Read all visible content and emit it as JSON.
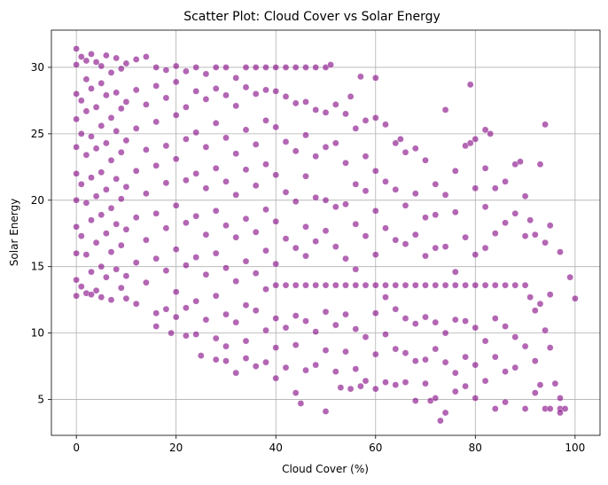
{
  "chart_data": {
    "type": "scatter",
    "title": "Scatter Plot: Cloud Cover vs Solar Energy",
    "xlabel": "Cloud Cover (%)",
    "ylabel": "Solar Energy",
    "xlim": [
      -5,
      105
    ],
    "ylim": [
      2.3,
      32.8
    ],
    "xticks": [
      0,
      20,
      40,
      60,
      80,
      100
    ],
    "yticks": [
      5,
      10,
      15,
      20,
      25,
      30
    ],
    "grid": true,
    "legend": "none",
    "marker_color": "#800080",
    "marker_edge": "#ffffff",
    "marker_alpha": 0.6,
    "points_sample": [
      [
        0,
        31.4
      ],
      [
        0,
        30.2
      ],
      [
        0,
        28.0
      ],
      [
        0,
        26.1
      ],
      [
        0,
        24.0
      ],
      [
        0,
        22.0
      ],
      [
        0,
        20.0
      ],
      [
        0,
        18.0
      ],
      [
        0,
        16.0
      ],
      [
        0,
        14.0
      ],
      [
        0,
        12.8
      ],
      [
        1,
        30.8
      ],
      [
        1,
        27.5
      ],
      [
        1,
        25.0
      ],
      [
        1,
        21.2
      ],
      [
        1,
        17.3
      ],
      [
        1,
        13.5
      ],
      [
        2,
        30.5
      ],
      [
        2,
        29.1
      ],
      [
        2,
        26.7
      ],
      [
        2,
        23.4
      ],
      [
        2,
        19.8
      ],
      [
        2,
        15.9
      ],
      [
        2,
        13.0
      ],
      [
        3,
        31.0
      ],
      [
        3,
        28.4
      ],
      [
        3,
        24.8
      ],
      [
        3,
        21.7
      ],
      [
        3,
        18.5
      ],
      [
        3,
        14.6
      ],
      [
        3,
        12.9
      ],
      [
        4,
        30.4
      ],
      [
        4,
        27.0
      ],
      [
        4,
        23.9
      ],
      [
        4,
        20.3
      ],
      [
        4,
        16.8
      ],
      [
        4,
        13.2
      ],
      [
        5,
        30.1
      ],
      [
        5,
        28.8
      ],
      [
        5,
        25.6
      ],
      [
        5,
        22.1
      ],
      [
        5,
        18.9
      ],
      [
        5,
        15.0
      ],
      [
        5,
        12.7
      ],
      [
        6,
        30.9
      ],
      [
        6,
        27.9
      ],
      [
        6,
        24.3
      ],
      [
        6,
        20.8
      ],
      [
        6,
        17.5
      ],
      [
        6,
        14.2
      ],
      [
        7,
        29.6
      ],
      [
        7,
        26.2
      ],
      [
        7,
        23.0
      ],
      [
        7,
        19.4
      ],
      [
        7,
        16.1
      ],
      [
        7,
        12.5
      ],
      [
        8,
        30.7
      ],
      [
        8,
        28.1
      ],
      [
        8,
        25.2
      ],
      [
        8,
        21.6
      ],
      [
        8,
        18.2
      ],
      [
        8,
        14.8
      ],
      [
        9,
        29.9
      ],
      [
        9,
        26.9
      ],
      [
        9,
        23.6
      ],
      [
        9,
        20.1
      ],
      [
        9,
        16.6
      ],
      [
        9,
        13.4
      ],
      [
        10,
        30.3
      ],
      [
        10,
        27.4
      ],
      [
        10,
        24.5
      ],
      [
        10,
        21.0
      ],
      [
        10,
        17.8
      ],
      [
        10,
        14.3
      ],
      [
        10,
        12.6
      ],
      [
        12,
        30.6
      ],
      [
        12,
        28.3
      ],
      [
        12,
        25.4
      ],
      [
        12,
        22.2
      ],
      [
        12,
        18.7
      ],
      [
        12,
        15.3
      ],
      [
        12,
        12.2
      ],
      [
        14,
        30.8
      ],
      [
        14,
        27.2
      ],
      [
        14,
        23.8
      ],
      [
        14,
        20.5
      ],
      [
        14,
        17.0
      ],
      [
        14,
        13.8
      ],
      [
        16,
        30.0
      ],
      [
        16,
        28.6
      ],
      [
        16,
        25.9
      ],
      [
        16,
        22.6
      ],
      [
        16,
        19.0
      ],
      [
        16,
        15.6
      ],
      [
        16,
        11.5
      ],
      [
        16,
        10.5
      ],
      [
        18,
        29.8
      ],
      [
        18,
        27.7
      ],
      [
        18,
        24.1
      ],
      [
        18,
        21.3
      ],
      [
        18,
        17.9
      ],
      [
        18,
        14.7
      ],
      [
        18,
        11.8
      ],
      [
        19,
        10.0
      ],
      [
        20,
        30.1
      ],
      [
        20,
        28.9
      ],
      [
        20,
        26.4
      ],
      [
        20,
        23.1
      ],
      [
        20,
        19.6
      ],
      [
        20,
        16.3
      ],
      [
        20,
        13.1
      ],
      [
        20,
        11.2
      ],
      [
        22,
        29.7
      ],
      [
        22,
        27.0
      ],
      [
        22,
        24.6
      ],
      [
        22,
        21.5
      ],
      [
        22,
        18.3
      ],
      [
        22,
        15.1
      ],
      [
        22,
        11.9
      ],
      [
        22,
        9.8
      ],
      [
        24,
        30.0
      ],
      [
        24,
        28.2
      ],
      [
        24,
        25.1
      ],
      [
        24,
        22.0
      ],
      [
        24,
        18.8
      ],
      [
        24,
        15.7
      ],
      [
        24,
        12.4
      ],
      [
        24,
        9.9
      ],
      [
        25,
        8.3
      ],
      [
        26,
        29.5
      ],
      [
        26,
        27.6
      ],
      [
        26,
        24.0
      ],
      [
        26,
        20.9
      ],
      [
        26,
        17.4
      ],
      [
        26,
        14.4
      ],
      [
        26,
        11.0
      ],
      [
        28,
        30.0
      ],
      [
        28,
        28.4
      ],
      [
        28,
        25.8
      ],
      [
        28,
        22.4
      ],
      [
        28,
        19.2
      ],
      [
        28,
        16.0
      ],
      [
        28,
        12.8
      ],
      [
        28,
        9.6
      ],
      [
        28,
        8.0
      ],
      [
        30,
        30.0
      ],
      [
        30,
        27.9
      ],
      [
        30,
        24.7
      ],
      [
        30,
        21.4
      ],
      [
        30,
        18.1
      ],
      [
        30,
        14.9
      ],
      [
        30,
        11.4
      ],
      [
        30,
        9.0
      ],
      [
        30,
        7.9
      ],
      [
        32,
        29.2
      ],
      [
        32,
        27.1
      ],
      [
        32,
        23.5
      ],
      [
        32,
        20.4
      ],
      [
        32,
        17.2
      ],
      [
        32,
        13.9
      ],
      [
        32,
        10.8
      ],
      [
        32,
        7.0
      ],
      [
        34,
        30.0
      ],
      [
        34,
        28.5
      ],
      [
        34,
        25.3
      ],
      [
        34,
        22.3
      ],
      [
        34,
        18.6
      ],
      [
        34,
        15.4
      ],
      [
        34,
        12.1
      ],
      [
        34,
        9.4
      ],
      [
        34,
        8.1
      ],
      [
        36,
        30.0
      ],
      [
        36,
        28.0
      ],
      [
        36,
        24.2
      ],
      [
        36,
        21.1
      ],
      [
        36,
        17.6
      ],
      [
        36,
        14.5
      ],
      [
        36,
        11.7
      ],
      [
        36,
        7.5
      ],
      [
        38,
        30.0
      ],
      [
        38,
        28.3
      ],
      [
        38,
        26.0
      ],
      [
        38,
        22.7
      ],
      [
        38,
        19.3
      ],
      [
        38,
        16.2
      ],
      [
        38,
        13.3
      ],
      [
        38,
        10.2
      ],
      [
        38,
        7.8
      ],
      [
        40,
        30.0
      ],
      [
        40,
        28.2
      ],
      [
        40,
        25.5
      ],
      [
        40,
        21.9
      ],
      [
        40,
        18.4
      ],
      [
        40,
        15.2
      ],
      [
        40,
        13.6
      ],
      [
        40,
        11.1
      ],
      [
        40,
        8.9
      ],
      [
        40,
        6.6
      ],
      [
        42,
        30.0
      ],
      [
        42,
        27.8
      ],
      [
        42,
        24.4
      ],
      [
        42,
        20.6
      ],
      [
        42,
        17.1
      ],
      [
        42,
        13.6
      ],
      [
        42,
        10.4
      ],
      [
        42,
        7.4
      ],
      [
        44,
        30.0
      ],
      [
        44,
        27.3
      ],
      [
        44,
        23.7
      ],
      [
        44,
        19.9
      ],
      [
        44,
        16.4
      ],
      [
        44,
        13.6
      ],
      [
        44,
        11.3
      ],
      [
        44,
        9.1
      ],
      [
        44,
        5.5
      ],
      [
        45,
        4.7
      ],
      [
        46,
        30.0
      ],
      [
        46,
        27.4
      ],
      [
        46,
        24.9
      ],
      [
        46,
        21.8
      ],
      [
        46,
        18.0
      ],
      [
        46,
        15.8
      ],
      [
        46,
        13.6
      ],
      [
        46,
        10.9
      ],
      [
        46,
        7.2
      ],
      [
        48,
        30.0
      ],
      [
        48,
        26.8
      ],
      [
        48,
        23.3
      ],
      [
        48,
        20.2
      ],
      [
        48,
        16.9
      ],
      [
        48,
        13.6
      ],
      [
        48,
        10.1
      ],
      [
        48,
        7.6
      ],
      [
        50,
        30.0
      ],
      [
        50,
        26.6
      ],
      [
        50,
        24.0
      ],
      [
        50,
        20.0
      ],
      [
        50,
        17.7
      ],
      [
        50,
        13.6
      ],
      [
        50,
        11.6
      ],
      [
        50,
        8.7
      ],
      [
        50,
        4.1
      ],
      [
        51,
        30.2
      ],
      [
        52,
        27.2
      ],
      [
        52,
        24.3
      ],
      [
        52,
        19.5
      ],
      [
        52,
        16.5
      ],
      [
        52,
        13.6
      ],
      [
        52,
        10.6
      ],
      [
        52,
        7.1
      ],
      [
        53,
        5.9
      ],
      [
        54,
        26.5
      ],
      [
        54,
        22.8
      ],
      [
        54,
        19.7
      ],
      [
        54,
        15.6
      ],
      [
        54,
        13.6
      ],
      [
        54,
        11.4
      ],
      [
        54,
        8.6
      ],
      [
        55,
        27.8
      ],
      [
        55,
        5.8
      ],
      [
        56,
        25.4
      ],
      [
        56,
        21.2
      ],
      [
        56,
        18.2
      ],
      [
        56,
        14.8
      ],
      [
        56,
        13.6
      ],
      [
        56,
        10.3
      ],
      [
        56,
        7.3
      ],
      [
        57,
        29.3
      ],
      [
        57,
        6.0
      ],
      [
        58,
        26.0
      ],
      [
        58,
        23.3
      ],
      [
        58,
        20.7
      ],
      [
        58,
        17.3
      ],
      [
        58,
        13.6
      ],
      [
        58,
        9.7
      ],
      [
        58,
        6.4
      ],
      [
        60,
        29.2
      ],
      [
        60,
        26.2
      ],
      [
        60,
        22.2
      ],
      [
        60,
        19.2
      ],
      [
        60,
        15.9
      ],
      [
        60,
        13.6
      ],
      [
        60,
        11.5
      ],
      [
        60,
        8.4
      ],
      [
        60,
        5.8
      ],
      [
        62,
        25.7
      ],
      [
        62,
        21.4
      ],
      [
        62,
        17.9
      ],
      [
        62,
        13.6
      ],
      [
        62,
        12.7
      ],
      [
        62,
        9.9
      ],
      [
        62,
        6.3
      ],
      [
        64,
        24.3
      ],
      [
        64,
        20.8
      ],
      [
        64,
        17.0
      ],
      [
        64,
        13.6
      ],
      [
        64,
        11.8
      ],
      [
        64,
        8.8
      ],
      [
        64,
        6.1
      ],
      [
        65,
        24.6
      ],
      [
        66,
        23.6
      ],
      [
        66,
        19.6
      ],
      [
        66,
        16.7
      ],
      [
        66,
        13.6
      ],
      [
        66,
        11.1
      ],
      [
        66,
        8.5
      ],
      [
        66,
        6.3
      ],
      [
        68,
        23.9
      ],
      [
        68,
        20.5
      ],
      [
        68,
        17.4
      ],
      [
        68,
        13.6
      ],
      [
        68,
        10.7
      ],
      [
        68,
        7.9
      ],
      [
        68,
        4.9
      ],
      [
        70,
        23.0
      ],
      [
        70,
        18.7
      ],
      [
        70,
        15.8
      ],
      [
        70,
        13.6
      ],
      [
        70,
        11.2
      ],
      [
        70,
        8.0
      ],
      [
        70,
        6.2
      ],
      [
        71,
        4.9
      ],
      [
        72,
        21.2
      ],
      [
        72,
        18.9
      ],
      [
        72,
        16.4
      ],
      [
        72,
        13.6
      ],
      [
        72,
        10.8
      ],
      [
        72,
        8.8
      ],
      [
        72,
        5.1
      ],
      [
        73,
        3.4
      ],
      [
        74,
        26.8
      ],
      [
        74,
        20.4
      ],
      [
        74,
        16.5
      ],
      [
        74,
        13.6
      ],
      [
        74,
        10.0
      ],
      [
        74,
        7.8
      ],
      [
        74,
        4.0
      ],
      [
        76,
        22.2
      ],
      [
        76,
        19.1
      ],
      [
        76,
        14.6
      ],
      [
        76,
        13.6
      ],
      [
        76,
        11.0
      ],
      [
        76,
        7.0
      ],
      [
        76,
        5.6
      ],
      [
        78,
        24.1
      ],
      [
        78,
        17.2
      ],
      [
        78,
        13.6
      ],
      [
        78,
        10.9
      ],
      [
        78,
        8.2
      ],
      [
        78,
        6.0
      ],
      [
        79,
        28.7
      ],
      [
        79,
        24.3
      ],
      [
        80,
        24.6
      ],
      [
        80,
        20.9
      ],
      [
        80,
        15.9
      ],
      [
        80,
        13.6
      ],
      [
        80,
        10.4
      ],
      [
        80,
        7.6
      ],
      [
        80,
        5.1
      ],
      [
        82,
        25.3
      ],
      [
        82,
        22.4
      ],
      [
        82,
        19.5
      ],
      [
        82,
        16.4
      ],
      [
        82,
        13.6
      ],
      [
        82,
        9.4
      ],
      [
        82,
        6.4
      ],
      [
        83,
        25.0
      ],
      [
        84,
        20.9
      ],
      [
        84,
        17.5
      ],
      [
        84,
        13.6
      ],
      [
        84,
        11.1
      ],
      [
        84,
        8.2
      ],
      [
        84,
        4.3
      ],
      [
        86,
        21.4
      ],
      [
        86,
        18.3
      ],
      [
        86,
        13.6
      ],
      [
        86,
        10.5
      ],
      [
        86,
        7.1
      ],
      [
        86,
        4.8
      ],
      [
        88,
        22.7
      ],
      [
        88,
        19.0
      ],
      [
        88,
        13.6
      ],
      [
        88,
        9.7
      ],
      [
        88,
        7.4
      ],
      [
        89,
        22.9
      ],
      [
        90,
        20.3
      ],
      [
        90,
        17.3
      ],
      [
        90,
        13.6
      ],
      [
        90,
        9.0
      ],
      [
        90,
        4.3
      ],
      [
        91,
        18.5
      ],
      [
        91,
        12.7
      ],
      [
        92,
        17.4
      ],
      [
        92,
        11.7
      ],
      [
        92,
        7.9
      ],
      [
        92,
        5.5
      ],
      [
        93,
        22.7
      ],
      [
        93,
        12.2
      ],
      [
        93,
        6.1
      ],
      [
        94,
        25.7
      ],
      [
        94,
        16.8
      ],
      [
        94,
        10.2
      ],
      [
        94,
        4.3
      ],
      [
        95,
        18.1
      ],
      [
        95,
        12.9
      ],
      [
        95,
        8.9
      ],
      [
        95,
        4.3
      ],
      [
        96,
        6.2
      ],
      [
        97,
        16.1
      ],
      [
        97,
        5.1
      ],
      [
        97,
        4.3
      ],
      [
        97,
        4.0
      ],
      [
        98,
        4.3
      ],
      [
        99,
        14.2
      ],
      [
        100,
        12.6
      ]
    ]
  }
}
